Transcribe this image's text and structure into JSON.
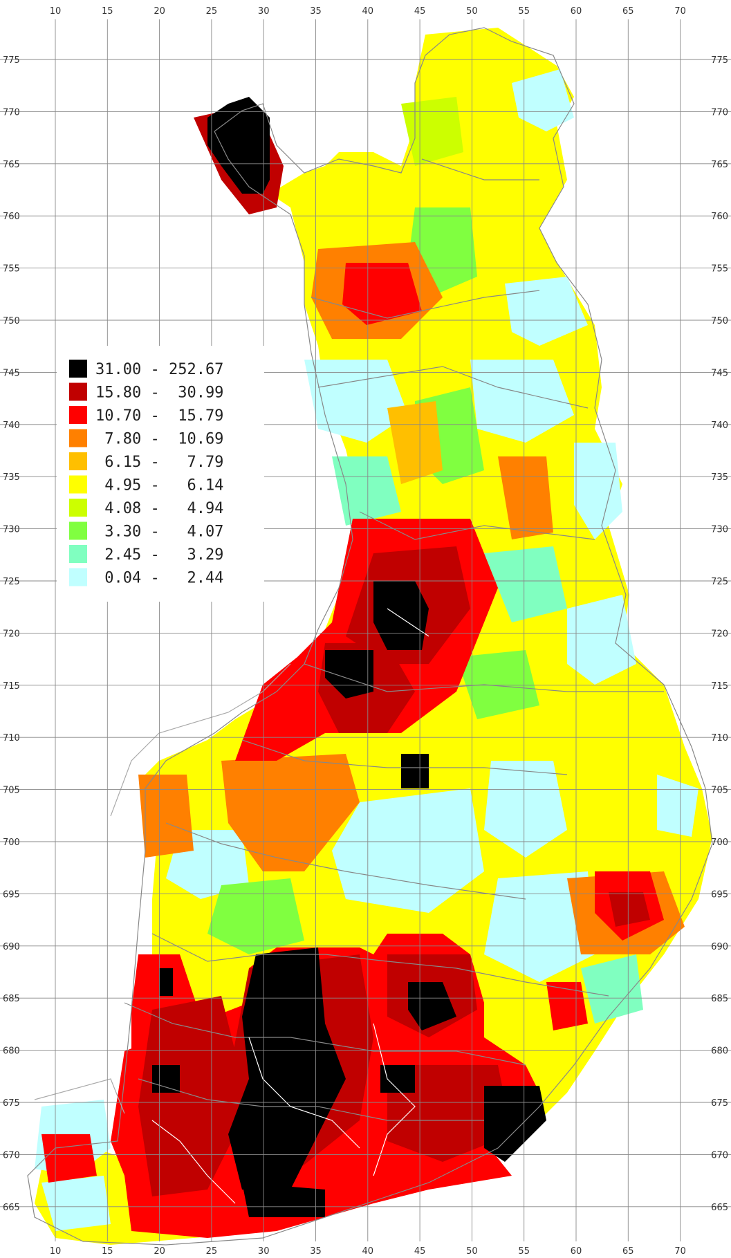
{
  "map": {
    "x_ticks": [
      "10",
      "15",
      "20",
      "25",
      "30",
      "35",
      "40",
      "45",
      "50",
      "55",
      "60",
      "65",
      "70"
    ],
    "y_ticks": [
      "775",
      "770",
      "765",
      "760",
      "755",
      "750",
      "745",
      "740",
      "735",
      "730",
      "725",
      "720",
      "715",
      "710",
      "705",
      "700",
      "695",
      "690",
      "685",
      "680",
      "675",
      "670",
      "665"
    ],
    "grid": true
  },
  "legend": {
    "entries": [
      {
        "range": "31.00 - 252.67",
        "color": "#000000"
      },
      {
        "range": "15.80 -  30.99",
        "color": "#c00000"
      },
      {
        "range": "10.70 -  15.79",
        "color": "#ff0000"
      },
      {
        "range": " 7.80 -  10.69",
        "color": "#ff8000"
      },
      {
        "range": " 6.15 -   7.79",
        "color": "#ffbf00"
      },
      {
        "range": " 4.95 -   6.14",
        "color": "#ffff00"
      },
      {
        "range": " 4.08 -   4.94",
        "color": "#ccff00"
      },
      {
        "range": " 3.30 -   4.07",
        "color": "#80ff40"
      },
      {
        "range": " 2.45 -   3.29",
        "color": "#80ffc0"
      },
      {
        "range": " 0.04 -   2.44",
        "color": "#c0ffff"
      }
    ]
  }
}
